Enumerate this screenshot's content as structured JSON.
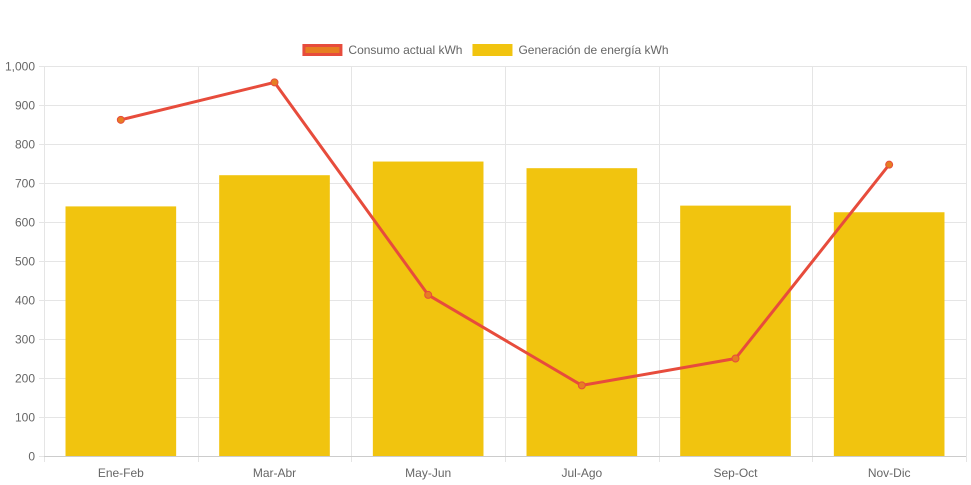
{
  "chart_data": {
    "type": "bar",
    "categories": [
      "Ene-Feb",
      "Mar-Abr",
      "May-Jun",
      "Jul-Ago",
      "Sep-Oct",
      "Nov-Dic"
    ],
    "series": [
      {
        "name": "Generación de energía kWh",
        "type": "bar",
        "color": "#F1C40F",
        "values": [
          640,
          720,
          755,
          738,
          642,
          625
        ]
      },
      {
        "name": "Consumo actual kWh",
        "type": "line",
        "color": "#E74C3C",
        "legend_fill": "#E67E22",
        "point_color": "#E67E22",
        "values": [
          862,
          958,
          413,
          181,
          250,
          747
        ]
      }
    ],
    "legend_order": [
      1,
      0
    ],
    "legend_position": "top-center",
    "ylim": [
      0,
      1000
    ],
    "yticks": [
      0,
      100,
      200,
      300,
      400,
      500,
      600,
      700,
      800,
      900,
      1000
    ],
    "ytick_labels": [
      "0",
      "100",
      "200",
      "300",
      "400",
      "500",
      "600",
      "700",
      "800",
      "900",
      "1,000"
    ],
    "grid": true,
    "grid_color": "#e5e5e5",
    "title": "",
    "xlabel": "",
    "ylabel": ""
  }
}
